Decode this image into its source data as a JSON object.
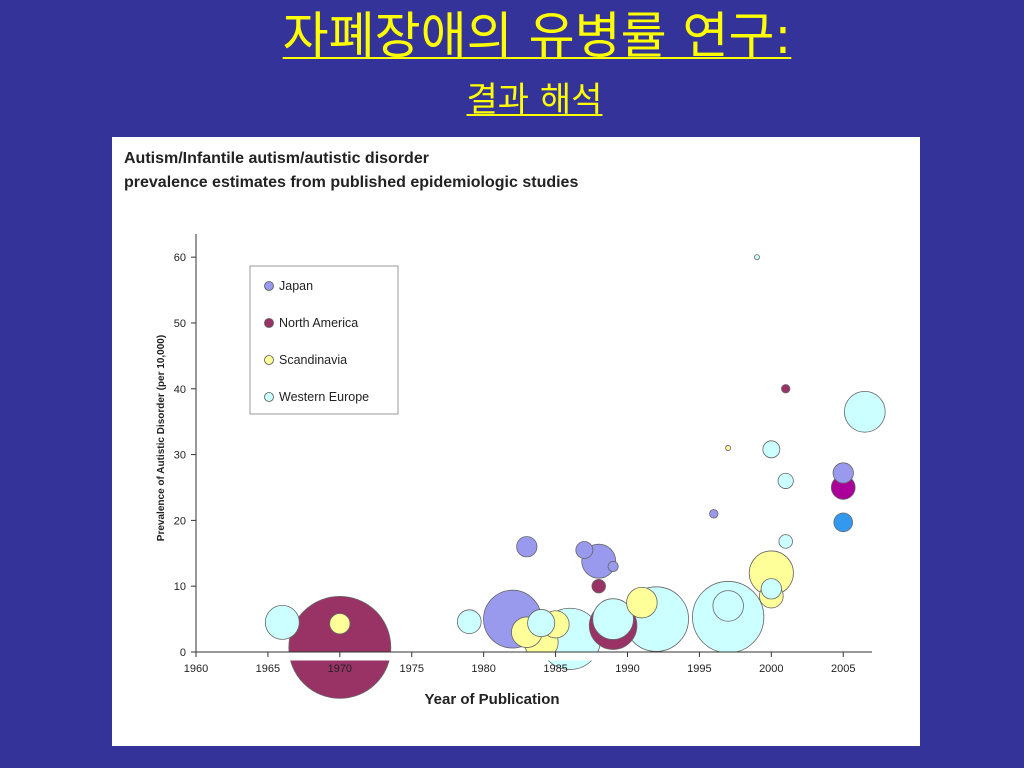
{
  "slide": {
    "title": "자폐장애의 유병률 연구:",
    "subtitle": "결과 해석"
  },
  "colors": {
    "background": "#333399",
    "title": "#ffff00",
    "japan": "#9999ee",
    "north_america": "#993366",
    "north_america_2005": "#aa0099",
    "scandinavia": "#ffff99",
    "western_europe": "#ccffff",
    "western_europe_2005_blue": "#3399ee"
  },
  "chart_data": {
    "type": "scatter",
    "title": "Autism/Infantile autism/autistic disorder",
    "subtitle": "prevalence estimates from published epidemiologic studies",
    "xlabel": "Year of Publication",
    "ylabel": "Prevalence of Autistic Disorder (per 10,000)",
    "xlim": [
      1960,
      2007
    ],
    "ylim": [
      0,
      62
    ],
    "xticks": [
      1960,
      1965,
      1970,
      1975,
      1980,
      1985,
      1990,
      1995,
      2000,
      2005
    ],
    "yticks": [
      0,
      10,
      20,
      30,
      40,
      50,
      60
    ],
    "grid": false,
    "legend": {
      "placement": "top-left",
      "entries": [
        "Japan",
        "North America",
        "Scandinavia",
        "Western Europe"
      ]
    },
    "bubble_size_encoding": "study population size (relative)",
    "series": [
      {
        "name": "Japan",
        "color": "#9999ee",
        "points": [
          {
            "x": 1982,
            "y": 5,
            "size": 17
          },
          {
            "x": 1983,
            "y": 16,
            "size": 6
          },
          {
            "x": 1987,
            "y": 15.5,
            "size": 5
          },
          {
            "x": 1988,
            "y": 13.8,
            "size": 10
          },
          {
            "x": 1989,
            "y": 13,
            "size": 3
          },
          {
            "x": 1996,
            "y": 21,
            "size": 2.5
          },
          {
            "x": 2005,
            "y": 27.2,
            "size": 6
          }
        ]
      },
      {
        "name": "North America",
        "color": "#993366",
        "points": [
          {
            "x": 1970,
            "y": 0.7,
            "size": 30
          },
          {
            "x": 1988,
            "y": 10,
            "size": 4
          },
          {
            "x": 1989,
            "y": 4,
            "size": 14
          },
          {
            "x": 2001,
            "y": 40,
            "size": 2.5
          },
          {
            "x": 2005,
            "y": 25,
            "size": 7,
            "color": "#aa0099"
          }
        ]
      },
      {
        "name": "Scandinavia",
        "color": "#ffff99",
        "points": [
          {
            "x": 1970,
            "y": 4.3,
            "size": 6
          },
          {
            "x": 1983,
            "y": 3,
            "size": 9
          },
          {
            "x": 1984,
            "y": 1.5,
            "size": 10
          },
          {
            "x": 1985,
            "y": 4.2,
            "size": 8
          },
          {
            "x": 1991,
            "y": 7.5,
            "size": 9
          },
          {
            "x": 1997,
            "y": 31,
            "size": 1.5
          },
          {
            "x": 2000,
            "y": 8.5,
            "size": 7
          },
          {
            "x": 2000,
            "y": 12,
            "size": 13
          }
        ]
      },
      {
        "name": "Western Europe",
        "color": "#ccffff",
        "points": [
          {
            "x": 1966,
            "y": 4.5,
            "size": 10
          },
          {
            "x": 1979,
            "y": 4.6,
            "size": 7
          },
          {
            "x": 1984,
            "y": 4.4,
            "size": 8
          },
          {
            "x": 1986,
            "y": 2,
            "size": 18
          },
          {
            "x": 1989,
            "y": 5,
            "size": 12
          },
          {
            "x": 1992,
            "y": 5,
            "size": 19
          },
          {
            "x": 1997,
            "y": 5.3,
            "size": 21
          },
          {
            "x": 1997,
            "y": 7,
            "size": 9
          },
          {
            "x": 1999,
            "y": 60,
            "size": 1.5
          },
          {
            "x": 2000,
            "y": 30.8,
            "size": 5
          },
          {
            "x": 2000,
            "y": 9.6,
            "size": 6
          },
          {
            "x": 2001,
            "y": 26,
            "size": 4.5
          },
          {
            "x": 2001,
            "y": 16.8,
            "size": 4
          },
          {
            "x": 2005,
            "y": 19.7,
            "size": 5.5,
            "color": "#3399ee"
          },
          {
            "x": 2006.5,
            "y": 36.5,
            "size": 12
          }
        ]
      }
    ]
  }
}
